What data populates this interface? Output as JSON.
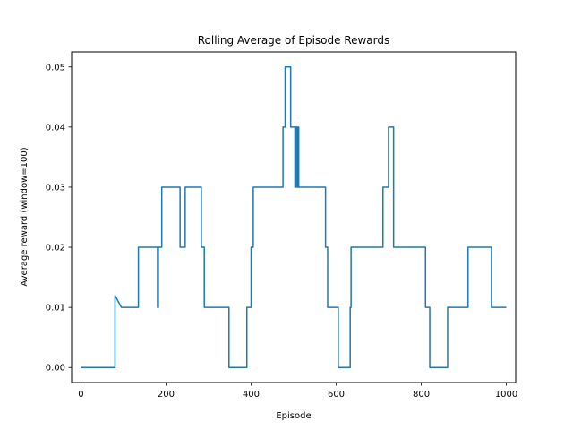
{
  "chart_data": {
    "type": "line",
    "title": "Rolling Average of Episode Rewards",
    "xlabel": "Episode",
    "ylabel": "Average reward (window=100)",
    "xlim": [
      -22,
      1022
    ],
    "ylim": [
      -0.0025,
      0.0525
    ],
    "xticks": [
      0,
      200,
      400,
      600,
      800,
      1000
    ],
    "xtick_labels": [
      "0",
      "200",
      "400",
      "600",
      "800",
      "1000"
    ],
    "yticks": [
      0.0,
      0.01,
      0.02,
      0.03,
      0.04,
      0.05
    ],
    "ytick_labels": [
      "0.00",
      "0.01",
      "0.02",
      "0.03",
      "0.04",
      "0.05"
    ],
    "grid": false,
    "colors": {
      "line": "#1f77b4"
    },
    "series": [
      {
        "x": [
          0,
          80,
          80,
          95,
          135,
          135,
          180,
          180,
          182,
          182,
          190,
          190,
          233,
          233,
          245,
          245,
          283,
          283,
          290,
          290,
          348,
          348,
          390,
          390,
          400,
          400,
          405,
          405,
          410,
          410,
          475,
          475,
          480,
          480,
          493,
          493,
          503,
          503,
          505,
          505,
          508,
          508,
          510,
          510,
          512,
          512,
          575,
          575,
          580,
          580,
          605,
          605,
          633,
          633,
          635,
          635,
          638,
          638,
          710,
          710,
          723,
          723,
          735,
          735,
          810,
          810,
          820,
          820,
          862,
          862,
          910,
          910,
          965,
          965,
          1000
        ],
        "y": [
          0.0,
          0.0,
          0.012,
          0.01,
          0.01,
          0.02,
          0.02,
          0.01,
          0.01,
          0.02,
          0.02,
          0.03,
          0.03,
          0.02,
          0.02,
          0.03,
          0.03,
          0.02,
          0.02,
          0.01,
          0.01,
          0.0,
          0.0,
          0.01,
          0.01,
          0.02,
          0.02,
          0.03,
          0.03,
          0.03,
          0.03,
          0.04,
          0.04,
          0.05,
          0.05,
          0.04,
          0.04,
          0.03,
          0.03,
          0.04,
          0.04,
          0.03,
          0.03,
          0.04,
          0.04,
          0.03,
          0.03,
          0.02,
          0.02,
          0.01,
          0.01,
          0.0,
          0.0,
          0.01,
          0.01,
          0.02,
          0.02,
          0.02,
          0.02,
          0.03,
          0.03,
          0.04,
          0.04,
          0.02,
          0.02,
          0.01,
          0.01,
          0.0,
          0.0,
          0.01,
          0.01,
          0.02,
          0.02,
          0.01,
          0.01
        ]
      }
    ]
  }
}
